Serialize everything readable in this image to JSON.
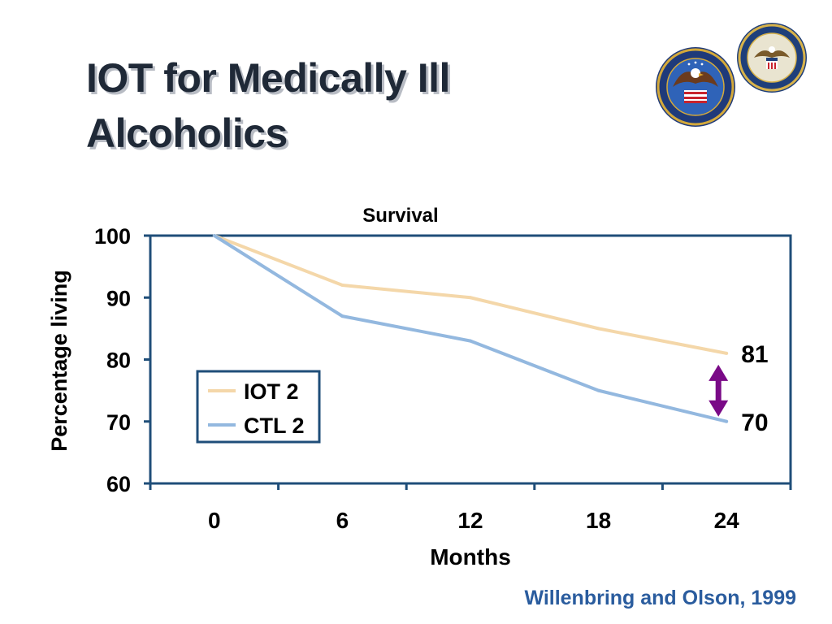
{
  "slide": {
    "title_line1": "IOT for Medically Ill",
    "title_line2": "Alcoholics",
    "citation": "Willenbring and Olson, 1999"
  },
  "colors": {
    "iot": "#f4d7a9",
    "ctl": "#93b8df",
    "frame": "#1f4e79",
    "arrow": "#7a0a87"
  },
  "chart_data": {
    "type": "line",
    "title": "Survival",
    "xlabel": "Months",
    "ylabel": "Percentage living",
    "x": [
      0,
      6,
      12,
      18,
      24
    ],
    "x_tick_labels": [
      "0",
      "6",
      "12",
      "18",
      "24"
    ],
    "ylim": [
      60,
      100
    ],
    "y_ticks": [
      60,
      70,
      80,
      90,
      100
    ],
    "grid": false,
    "legend_position": "center-left",
    "series": [
      {
        "name": "IOT 2",
        "values": [
          100,
          92,
          90,
          85,
          81
        ],
        "end_label": "81"
      },
      {
        "name": "CTL 2",
        "values": [
          100,
          87,
          83,
          75,
          70
        ],
        "end_label": "70"
      }
    ],
    "annotation": "double-headed arrow between series at 24 months"
  }
}
